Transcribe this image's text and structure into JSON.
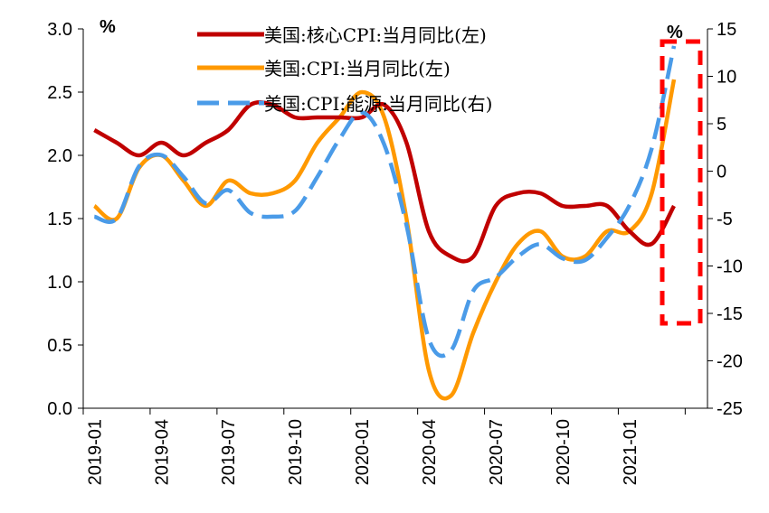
{
  "chart_data": {
    "type": "line",
    "categories": [
      "2019-01",
      "2019-02",
      "2019-03",
      "2019-04",
      "2019-05",
      "2019-06",
      "2019-07",
      "2019-08",
      "2019-09",
      "2019-10",
      "2019-11",
      "2019-12",
      "2020-01",
      "2020-02",
      "2020-03",
      "2020-04",
      "2020-05",
      "2020-06",
      "2020-07",
      "2020-08",
      "2020-09",
      "2020-10",
      "2020-11",
      "2020-12",
      "2021-01",
      "2021-02",
      "2021-03",
      "2021-04"
    ],
    "x_tick_labels": [
      "2019-01",
      "2019-04",
      "2019-07",
      "2019-10",
      "2020-01",
      "2020-04",
      "2020-07",
      "2020-10",
      "2021-01"
    ],
    "y_left": {
      "unit": "%",
      "ylim": [
        0,
        3
      ],
      "ticks": [
        "0.0",
        "0.5",
        "1.0",
        "1.5",
        "2.0",
        "2.5",
        "3.0"
      ]
    },
    "y_right": {
      "unit": "%",
      "ylim": [
        -25,
        15
      ],
      "ticks": [
        "-25",
        "-20",
        "-15",
        "-10",
        "-5",
        "0",
        "5",
        "10",
        "15"
      ]
    },
    "series": [
      {
        "name": "美国:核心CPI:当月同比(左)",
        "axis": "left",
        "color": "#C00000",
        "style": "solid",
        "values": [
          2.2,
          2.1,
          2.0,
          2.1,
          2.0,
          2.1,
          2.2,
          2.4,
          2.4,
          2.3,
          2.3,
          2.3,
          2.3,
          2.4,
          2.1,
          1.4,
          1.2,
          1.2,
          1.6,
          1.7,
          1.7,
          1.6,
          1.6,
          1.6,
          1.4,
          1.3,
          1.6,
          null
        ]
      },
      {
        "name": "美国:CPI:当月同比(左)",
        "axis": "left",
        "color": "#FF9900",
        "style": "solid",
        "values": [
          1.6,
          1.5,
          1.9,
          2.0,
          1.8,
          1.6,
          1.8,
          1.7,
          1.7,
          1.8,
          2.1,
          2.3,
          2.5,
          2.3,
          1.5,
          0.3,
          0.1,
          0.6,
          1.0,
          1.3,
          1.4,
          1.2,
          1.2,
          1.4,
          1.4,
          1.7,
          2.6,
          null
        ]
      },
      {
        "name": "美国:CPI:能源:当月同比(右)",
        "axis": "right",
        "color": "#4A9BE8",
        "style": "dashed",
        "values": [
          -4.8,
          -5.0,
          0.5,
          1.7,
          -0.6,
          -3.4,
          -2.0,
          -4.4,
          -4.8,
          -4.2,
          -0.6,
          3.4,
          6.2,
          2.8,
          -5.7,
          -17.7,
          -18.9,
          -12.6,
          -11.2,
          -9.0,
          -7.7,
          -9.2,
          -9.4,
          -7.0,
          -3.6,
          2.4,
          13.2,
          null
        ]
      }
    ]
  }
}
